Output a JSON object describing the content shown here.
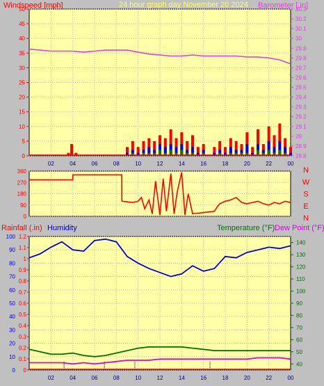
{
  "header": {
    "title": "24 hour graph day   November 20 2024",
    "left_label": "Windspeed [mph]",
    "right_label": "Barometer [.in]"
  },
  "lower_header": {
    "rain_label": "Rainfall (.in)",
    "humidity_label": "Humidity",
    "temp_label": "Temperature (°F)",
    "dew_label": "Dew Point (°F)"
  },
  "colors": {
    "background": "#c0c0c0",
    "plot_bg": "#ffffa8",
    "wind_gust": "#ff0000",
    "wind_avg": "#0000ff",
    "wind_low": "#008000",
    "barometer": "#e040e0",
    "direction": "#ff0000",
    "humidity": "#0000e0",
    "temperature": "#007000",
    "dew_point": "#e000e0",
    "title": "#ffff60"
  },
  "chart_data": [
    {
      "type": "bar",
      "name": "wind",
      "x_ticks": [
        "02",
        "04",
        "06",
        "08",
        "10",
        "12",
        "14",
        "16",
        "18",
        "20",
        "22",
        "00"
      ],
      "ylim": [
        0,
        50
      ],
      "y_ticks": [
        "0",
        "5",
        "10",
        "15",
        "20",
        "25",
        "30",
        "35",
        "40",
        "45",
        "50"
      ],
      "x_hours": [
        0,
        1,
        2,
        3,
        3.6,
        3.9,
        4.3,
        5,
        6,
        7,
        8,
        8.6,
        9,
        9.5,
        10,
        10.5,
        11,
        11.5,
        12,
        12.5,
        13,
        13.5,
        14,
        14.5,
        15,
        15.5,
        16,
        16.5,
        17,
        17.5,
        18,
        18.5,
        19,
        19.5,
        20,
        20.5,
        21,
        21.5,
        22,
        22.5,
        23,
        23.5,
        24
      ],
      "gust": [
        0,
        0,
        0,
        0,
        1,
        4,
        1,
        0,
        0,
        0,
        0,
        0,
        3,
        5,
        3,
        5,
        6,
        5,
        7,
        6,
        9,
        6,
        8,
        5,
        7,
        3,
        4,
        0,
        3,
        5,
        3,
        6,
        5,
        4,
        8,
        3,
        9,
        4,
        10,
        7,
        11,
        6,
        3
      ],
      "average": [
        0,
        0,
        0,
        0,
        0,
        0,
        0,
        0,
        0,
        0,
        0,
        0,
        1,
        2,
        1,
        2,
        3,
        2,
        4,
        3,
        4,
        3,
        4,
        2,
        3,
        1,
        2,
        0,
        1,
        2,
        1,
        3,
        2,
        2,
        4,
        1,
        4,
        2,
        5,
        3,
        5,
        3,
        1
      ],
      "low": [
        0,
        0,
        0,
        0,
        0,
        0,
        0,
        0,
        0,
        0,
        0,
        0,
        0,
        1,
        0,
        1,
        1,
        1,
        2,
        1,
        2,
        1,
        2,
        1,
        1,
        0,
        1,
        0,
        0,
        1,
        0,
        1,
        1,
        1,
        1,
        0,
        2,
        1,
        2,
        1,
        2,
        1,
        0
      ]
    },
    {
      "type": "line",
      "name": "barometer",
      "ylim": [
        28.8,
        30.3
      ],
      "y_ticks": [
        "28.8",
        "28.9",
        "29",
        "29.1",
        "29.2",
        "29.3",
        "29.4",
        "29.5",
        "29.6",
        "29.7",
        "29.8",
        "29.9",
        "30",
        "30.1",
        "30.2",
        "30.3"
      ],
      "x_hours": [
        0,
        1,
        2,
        3,
        4,
        5,
        6,
        7,
        8,
        9,
        10,
        11,
        12,
        13,
        14,
        15,
        16,
        17,
        18,
        19,
        20,
        21,
        22,
        23,
        23.5,
        24
      ],
      "values": [
        29.89,
        29.88,
        29.87,
        29.87,
        29.87,
        29.86,
        29.87,
        29.88,
        29.88,
        29.88,
        29.86,
        29.84,
        29.83,
        29.82,
        29.82,
        29.83,
        29.82,
        29.82,
        29.82,
        29.82,
        29.81,
        29.81,
        29.8,
        29.78,
        29.76,
        29.74
      ]
    },
    {
      "type": "line",
      "name": "wind-direction",
      "y_ticks": [
        "0",
        "90",
        "180",
        "270",
        "360"
      ],
      "compass": [
        "N",
        "W",
        "S",
        "E",
        "N"
      ],
      "ylim": [
        0,
        360
      ],
      "x_hours": [
        0,
        1,
        2,
        3,
        4,
        4.01,
        5,
        6,
        7,
        8,
        8.5,
        8.51,
        9,
        9.5,
        10,
        10.3,
        10.6,
        11,
        11.3,
        11.6,
        12,
        12.3,
        12.6,
        13,
        13.3,
        13.6,
        14,
        14.3,
        14.6,
        15,
        15.5,
        16,
        16.5,
        17,
        17.3,
        17.5,
        18,
        18.5,
        19,
        19.5,
        20,
        20.5,
        21,
        21.5,
        22,
        22.5,
        23,
        23.5,
        24
      ],
      "values": [
        290,
        290,
        290,
        290,
        290,
        330,
        330,
        330,
        330,
        330,
        330,
        120,
        115,
        110,
        120,
        150,
        60,
        130,
        20,
        280,
        10,
        300,
        40,
        340,
        20,
        200,
        350,
        10,
        180,
        20,
        25,
        30,
        35,
        40,
        80,
        100,
        120,
        130,
        150,
        110,
        100,
        110,
        120,
        100,
        90,
        110,
        100,
        120,
        110
      ]
    },
    {
      "type": "line",
      "name": "humidity",
      "ylim": [
        0,
        100
      ],
      "y_ticks": [
        "0",
        "10",
        "20",
        "30",
        "40",
        "50",
        "60",
        "70",
        "80",
        "90",
        "100"
      ],
      "x_hours": [
        0,
        1,
        2,
        3,
        4,
        5,
        6,
        7,
        8,
        9,
        10,
        11,
        12,
        13,
        14,
        15,
        16,
        17,
        18,
        19,
        20,
        21,
        22,
        23,
        24
      ],
      "values": [
        84,
        87,
        92,
        96,
        90,
        89,
        97,
        98,
        96,
        85,
        80,
        76,
        73,
        70,
        72,
        78,
        74,
        76,
        85,
        84,
        88,
        90,
        92,
        91,
        93
      ]
    },
    {
      "type": "line",
      "name": "rainfall",
      "ylim": [
        0,
        1.2
      ],
      "y_ticks": [
        "0",
        "0.1",
        "0.2",
        "0.3",
        "0.4",
        "0.5",
        "0.6",
        "0.7",
        "0.8",
        "0.9",
        "1",
        "1.1",
        "1.2"
      ],
      "values": [
        0,
        0
      ]
    },
    {
      "type": "line",
      "name": "temperature",
      "ylim": [
        35,
        145
      ],
      "y_ticks": [
        "40",
        "50",
        "60",
        "70",
        "80",
        "90",
        "100",
        "110",
        "120",
        "130",
        "140"
      ],
      "x_hours": [
        0,
        1,
        2,
        3,
        4,
        5,
        6,
        7,
        8,
        9,
        10,
        11,
        12,
        13,
        14,
        15,
        16,
        17,
        18,
        19,
        20,
        21,
        22,
        23,
        24
      ],
      "values": [
        52,
        50,
        48,
        48,
        49,
        47,
        46,
        47,
        49,
        51,
        53,
        54,
        54,
        54,
        54,
        53,
        52,
        51,
        51,
        51,
        51,
        51,
        51,
        51,
        51
      ]
    },
    {
      "type": "line",
      "name": "dew-point",
      "x_hours": [
        0,
        1,
        2,
        3,
        4,
        5,
        6,
        7,
        8,
        9,
        10,
        11,
        12,
        13,
        14,
        15,
        16,
        17,
        18,
        19,
        20,
        21,
        22,
        23,
        24
      ],
      "values": [
        41,
        41,
        41,
        41,
        40,
        41,
        40,
        41,
        42,
        43,
        43,
        43,
        44,
        44,
        44,
        44,
        44,
        44,
        44,
        44,
        44,
        45,
        45,
        45,
        44
      ]
    }
  ]
}
